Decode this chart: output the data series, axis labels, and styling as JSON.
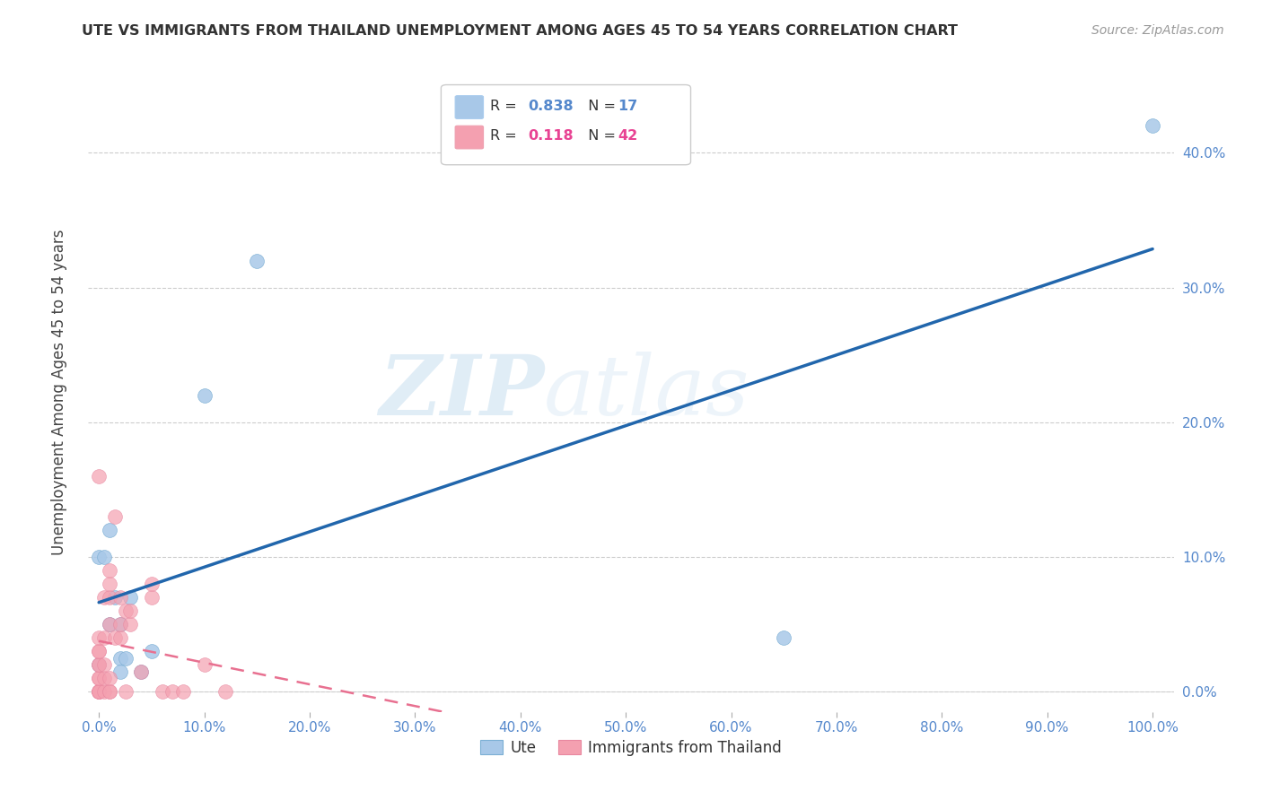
{
  "title": "UTE VS IMMIGRANTS FROM THAILAND UNEMPLOYMENT AMONG AGES 45 TO 54 YEARS CORRELATION CHART",
  "source": "Source: ZipAtlas.com",
  "ylabel": "Unemployment Among Ages 45 to 54 years",
  "R1": 0.838,
  "N1": 17,
  "R2": 0.118,
  "N2": 42,
  "color_ute": "#a8c8e8",
  "color_thai": "#f4a0b0",
  "trendline_ute_color": "#2166ac",
  "trendline_thai_color": "#e87090",
  "watermark_zip": "ZIP",
  "watermark_atlas": "atlas",
  "ute_x": [
    0.0,
    0.005,
    0.01,
    0.01,
    0.015,
    0.02,
    0.02,
    0.025,
    0.03,
    0.05,
    0.1,
    0.15,
    0.65,
    1.0,
    0.0,
    0.02,
    0.04
  ],
  "ute_y": [
    0.1,
    0.1,
    0.05,
    0.12,
    0.07,
    0.05,
    0.025,
    0.025,
    0.07,
    0.03,
    0.22,
    0.32,
    0.04,
    0.42,
    0.02,
    0.015,
    0.015
  ],
  "thai_x": [
    0.0,
    0.0,
    0.0,
    0.0,
    0.0,
    0.0,
    0.0,
    0.0,
    0.0,
    0.0,
    0.0,
    0.0,
    0.0,
    0.005,
    0.005,
    0.005,
    0.005,
    0.005,
    0.01,
    0.01,
    0.01,
    0.01,
    0.01,
    0.01,
    0.01,
    0.015,
    0.015,
    0.02,
    0.02,
    0.02,
    0.025,
    0.025,
    0.03,
    0.03,
    0.04,
    0.05,
    0.05,
    0.06,
    0.07,
    0.08,
    0.1,
    0.12
  ],
  "thai_y": [
    0.0,
    0.0,
    0.0,
    0.0,
    0.0,
    0.01,
    0.01,
    0.02,
    0.02,
    0.03,
    0.03,
    0.04,
    0.16,
    0.0,
    0.01,
    0.02,
    0.04,
    0.07,
    0.0,
    0.0,
    0.01,
    0.05,
    0.07,
    0.08,
    0.09,
    0.04,
    0.13,
    0.04,
    0.05,
    0.07,
    0.0,
    0.06,
    0.05,
    0.06,
    0.015,
    0.07,
    0.08,
    0.0,
    0.0,
    0.0,
    0.02,
    0.0
  ],
  "xlim": [
    0.0,
    1.0
  ],
  "ylim": [
    0.0,
    0.45
  ],
  "x_ticks": [
    0.0,
    0.1,
    0.2,
    0.3,
    0.4,
    0.5,
    0.6,
    0.7,
    0.8,
    0.9,
    1.0
  ],
  "y_ticks": [
    0.0,
    0.1,
    0.2,
    0.3,
    0.4
  ],
  "tick_color": "#5588cc"
}
